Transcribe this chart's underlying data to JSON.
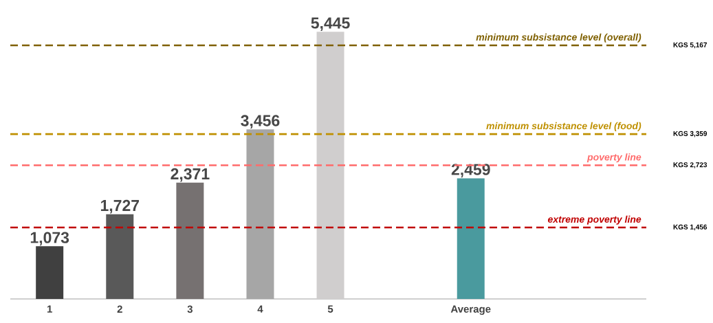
{
  "chart_data": {
    "type": "bar",
    "categories": [
      "1",
      "2",
      "3",
      "4",
      "5",
      null,
      "Average"
    ],
    "values": [
      1073,
      1727,
      2371,
      3456,
      5445,
      null,
      2459
    ],
    "value_labels": [
      "1,073",
      "1,727",
      "2,371",
      "3,456",
      "5,445",
      null,
      "2,459"
    ],
    "colors": [
      "#404040",
      "#595959",
      "#767171",
      "#a6a6a6",
      "#d0cece",
      "#d0cece",
      "#4a9a9e"
    ],
    "tick_labels": "x",
    "ref_lines": [
      {
        "axis": "y",
        "value": 5167,
        "label": "minimum subsistance level (overall)",
        "color": "#7f6000",
        "line_style": "dashed"
      },
      {
        "axis": "y",
        "value": 3359,
        "label": "minimum subsistance level (food)",
        "color": "#bf9000",
        "line_style": "dashed"
      },
      {
        "axis": "y",
        "value": 2723,
        "label": "poverty line",
        "color": "#ff6b6b",
        "line_style": "dashed"
      },
      {
        "axis": "y",
        "value": 1456,
        "label": "extreme poverty line",
        "color": "#c00000",
        "line_style": "dashed"
      }
    ],
    "annotations": [
      "KGS 5,167",
      "KGS 3,359",
      "KGS 2,723",
      "KGS 1,456"
    ]
  }
}
